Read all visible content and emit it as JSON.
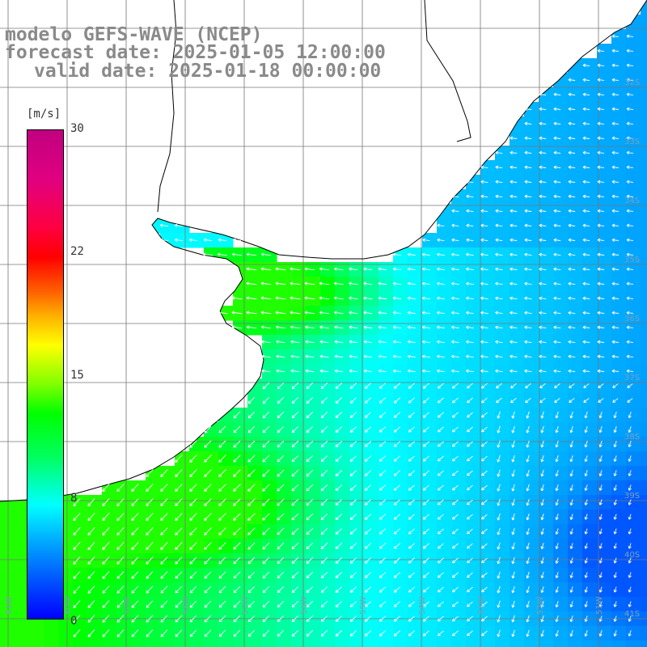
{
  "title": {
    "line1": "modelo GEFS-WAVE (NCEP)",
    "line2": "forecast date: 2025-01-05 12:00:00",
    "line3": "valid date: 2025-01-18 00:00:00"
  },
  "colorbar": {
    "unit": "[m/s]",
    "ticks": [
      "30",
      "22",
      "15",
      "8",
      "0"
    ],
    "tick_values": [
      30,
      22,
      15,
      8,
      0
    ],
    "colors": [
      "#0000ff",
      "#00a0ff",
      "#00ffff",
      "#00ff60",
      "#00ff00",
      "#80ff00",
      "#ffff00",
      "#ff6000",
      "#ff0000",
      "#c00080"
    ]
  },
  "map": {
    "lat_labels": [
      "32S",
      "33S",
      "34S",
      "35S",
      "36S",
      "37S",
      "38S",
      "39S",
      "40S",
      "41S"
    ],
    "lat_values": [
      -32,
      -33,
      -34,
      -35,
      -36,
      -37,
      -38,
      -39,
      -40,
      -41
    ],
    "lon_labels": [
      "61W",
      "60W",
      "59W",
      "58W",
      "57W",
      "56W",
      "55W",
      "54W",
      "53W",
      "52W",
      "51W"
    ],
    "lon_values": [
      -61,
      -60,
      -59,
      -58,
      -57,
      -56,
      -55,
      -54,
      -53,
      -52,
      -51
    ],
    "land_color": "#ffffff",
    "arrow_color": "#ffffff",
    "grid_color": "#777777"
  }
}
